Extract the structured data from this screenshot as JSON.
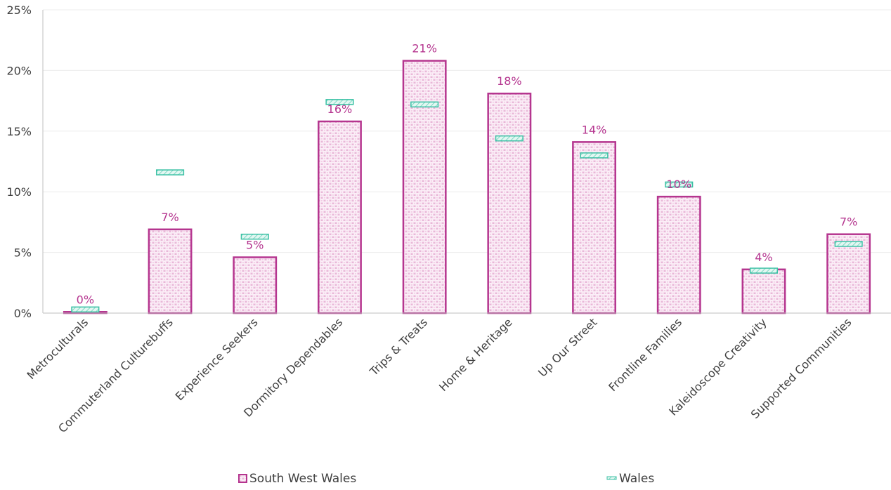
{
  "chart_data": {
    "type": "bar",
    "categories": [
      "Metroculturals",
      "Commuterland Culturebuffs",
      "Experience Seekers",
      "Dormitory Dependables",
      "Trips & Treats",
      "Home & Heritage",
      "Up Our Street",
      "Frontline Families",
      "Kaleidoscope Creativity",
      "Supported Communities"
    ],
    "series": [
      {
        "name": "South West Wales",
        "kind": "bar",
        "values": [
          0.1,
          6.9,
          4.6,
          15.8,
          20.8,
          18.1,
          14.1,
          9.6,
          3.6,
          6.5
        ],
        "labels": [
          "0%",
          "7%",
          "5%",
          "16%",
          "21%",
          "18%",
          "14%",
          "10%",
          "4%",
          "7%"
        ],
        "color": "#b5358f"
      },
      {
        "name": "Wales",
        "kind": "marker",
        "values": [
          0.3,
          11.6,
          6.3,
          17.4,
          17.2,
          14.4,
          13.0,
          10.6,
          3.5,
          5.7
        ],
        "color": "#3cc1a5"
      }
    ],
    "title": "",
    "xlabel": "",
    "ylabel": "",
    "ylim": [
      0,
      25
    ],
    "yticks": [
      0,
      5,
      10,
      15,
      20,
      25
    ],
    "ytick_labels": [
      "0%",
      "5%",
      "10%",
      "15%",
      "20%",
      "25%"
    ],
    "grid": true,
    "legend_position": "bottom"
  }
}
